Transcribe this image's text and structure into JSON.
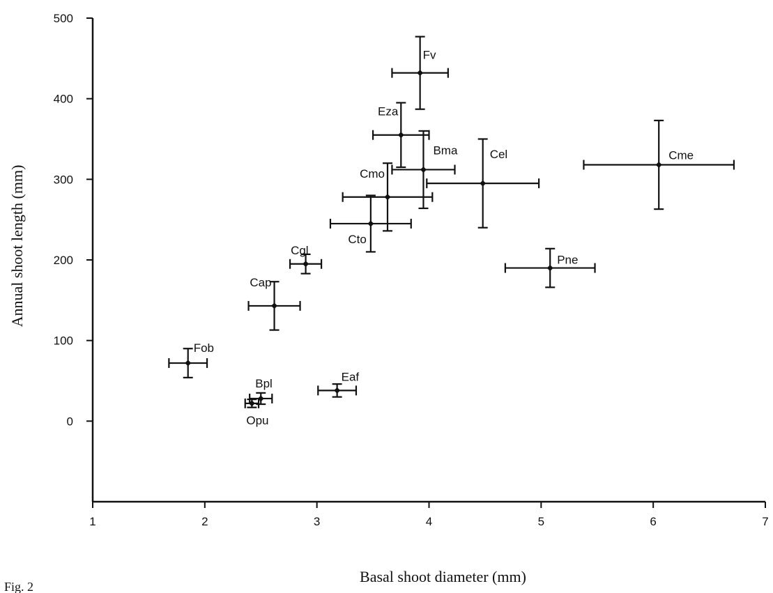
{
  "chart_data": {
    "type": "scatter",
    "title": "",
    "xlabel": "Basal shoot diameter (mm)",
    "ylabel": "Annual shoot length (mm)",
    "xlim": [
      1,
      7
    ],
    "ylim": [
      -100,
      500
    ],
    "xticks": [
      "1",
      "2",
      "3",
      "4",
      "5",
      "6",
      "7"
    ],
    "yticks": [
      "0",
      "100",
      "200",
      "300",
      "400",
      "500"
    ],
    "grid": false,
    "legend": "none",
    "footnote": "Fig. 2",
    "points": [
      {
        "label": "Fv",
        "x": 3.92,
        "y": 432,
        "xerr": 0.25,
        "yerr": 45
      },
      {
        "label": "Eza",
        "x": 3.75,
        "y": 355,
        "xerr": 0.25,
        "yerr": 40
      },
      {
        "label": "Bma",
        "x": 3.95,
        "y": 312,
        "xerr": 0.28,
        "yerr": 48
      },
      {
        "label": "Cel",
        "x": 4.48,
        "y": 295,
        "xerr": 0.5,
        "yerr": 55
      },
      {
        "label": "Cme",
        "x": 6.05,
        "y": 318,
        "xerr": 0.67,
        "yerr": 55
      },
      {
        "label": "Cmo",
        "x": 3.63,
        "y": 278,
        "xerr": 0.4,
        "yerr": 42
      },
      {
        "label": "Cto",
        "x": 3.48,
        "y": 245,
        "xerr": 0.36,
        "yerr": 35
      },
      {
        "label": "Cgl",
        "x": 2.9,
        "y": 195,
        "xerr": 0.14,
        "yerr": 12
      },
      {
        "label": "Pne",
        "x": 5.08,
        "y": 190,
        "xerr": 0.4,
        "yerr": 24
      },
      {
        "label": "Cap",
        "x": 2.62,
        "y": 143,
        "xerr": 0.23,
        "yerr": 30
      },
      {
        "label": "Fob",
        "x": 1.85,
        "y": 72,
        "xerr": 0.17,
        "yerr": 18
      },
      {
        "label": "Eaf",
        "x": 3.18,
        "y": 38,
        "xerr": 0.17,
        "yerr": 8
      },
      {
        "label": "Bpl",
        "x": 2.5,
        "y": 28,
        "xerr": 0.1,
        "yerr": 7
      },
      {
        "label": "Opu",
        "x": 2.42,
        "y": 22,
        "xerr": 0.06,
        "yerr": 5
      }
    ]
  }
}
